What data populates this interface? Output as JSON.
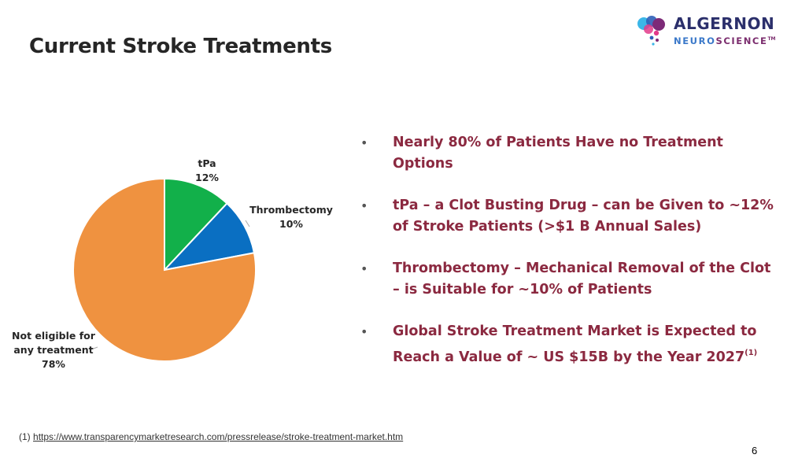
{
  "slide": {
    "title": "Current Stroke Treatments",
    "page_number": "6"
  },
  "logo": {
    "top_text": "ALGERNON",
    "bottom_text_a": "NEURO",
    "bottom_text_b": "SCIENCE",
    "trademark": "TM"
  },
  "bullets": [
    {
      "text": "Nearly 80% of Patients Have no Treatment Options",
      "sup": ""
    },
    {
      "text": "tPa – a Clot Busting Drug – can be Given to ~12% of Stroke Patients (>$1 B Annual Sales)",
      "sup": ""
    },
    {
      "text": "Thrombectomy – Mechanical Removal of the Clot – is Suitable for ~10% of Patients",
      "sup": ""
    },
    {
      "text": "Global Stroke Treatment Market is Expected to Reach a Value of   ~ US $15B by the Year 2027",
      "sup": "(1)"
    }
  ],
  "bullet_marker": "•",
  "footnote": {
    "prefix": "(1)",
    "link": "https://www.transparencymarketresearch.com/pressrelease/stroke-treatment-market.htm"
  },
  "chart_data": {
    "type": "pie",
    "title": "",
    "slices": [
      {
        "label": "tPa",
        "value": 12,
        "value_label": "12%",
        "color": "#12b04a"
      },
      {
        "label": "Thrombectomy",
        "value": 10,
        "value_label": "10%",
        "color": "#0a6fc2"
      },
      {
        "label": "Not eligible for any treatment",
        "value": 78,
        "value_label": "78%",
        "color": "#ef9240"
      }
    ]
  },
  "colors": {
    "bullet_text": "#8b2940",
    "title": "#262626"
  }
}
